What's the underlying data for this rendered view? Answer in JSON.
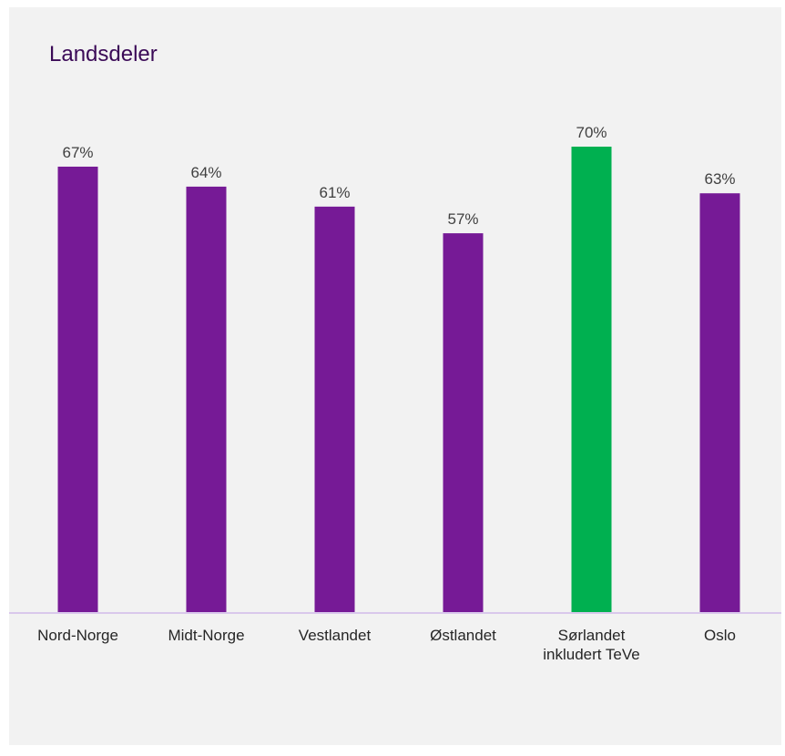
{
  "chart_data": {
    "type": "bar",
    "title": "Landsdeler",
    "categories": [
      [
        "Nord-Norge"
      ],
      [
        "Midt-Norge"
      ],
      [
        "Vestlandet"
      ],
      [
        "Østlandet"
      ],
      [
        "Sørlandet",
        "inkludert TeVe"
      ],
      [
        "Oslo"
      ]
    ],
    "values": [
      67,
      64,
      61,
      57,
      70,
      63
    ],
    "value_labels": [
      "67%",
      "64%",
      "61%",
      "57%",
      "70%",
      "63%"
    ],
    "ylim": [
      0,
      100
    ],
    "grid": false,
    "legend": "none",
    "colors": {
      "default_bar": "#761a96",
      "highlight_bar": "#00b050",
      "axis_line": "#d9c8ec",
      "title": "#3b0a57"
    },
    "highlight_index": 4
  }
}
